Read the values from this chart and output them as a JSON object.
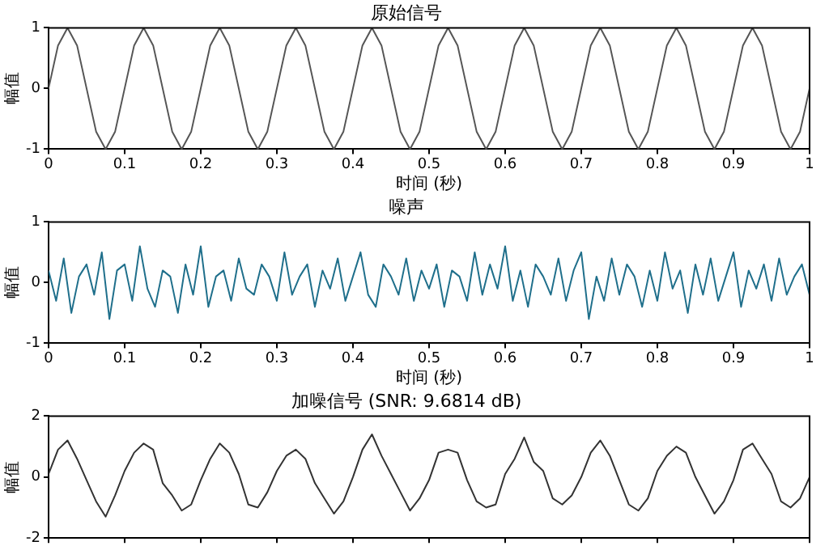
{
  "chart_data": [
    {
      "type": "line",
      "title": "原始信号",
      "xlabel": "时间 (秒)",
      "ylabel": "幅值",
      "x": [
        0,
        0.0125,
        0.025,
        0.0375,
        0.05,
        0.0625,
        0.075,
        0.0875,
        0.1,
        0.1125,
        0.125,
        0.1375,
        0.15,
        0.1625,
        0.175,
        0.1875,
        0.2,
        0.2125,
        0.225,
        0.2375,
        0.25,
        0.2625,
        0.275,
        0.2875,
        0.3,
        0.3125,
        0.325,
        0.3375,
        0.35,
        0.3625,
        0.375,
        0.3875,
        0.4,
        0.4125,
        0.425,
        0.4375,
        0.45,
        0.4625,
        0.475,
        0.4875,
        0.5,
        0.5125,
        0.525,
        0.5375,
        0.55,
        0.5625,
        0.575,
        0.5875,
        0.6,
        0.6125,
        0.625,
        0.6375,
        0.65,
        0.6625,
        0.675,
        0.6875,
        0.7,
        0.7125,
        0.725,
        0.7375,
        0.75,
        0.7625,
        0.775,
        0.7875,
        0.8,
        0.8125,
        0.825,
        0.8375,
        0.85,
        0.8625,
        0.875,
        0.8875,
        0.9,
        0.9125,
        0.925,
        0.9375,
        0.95,
        0.9625,
        0.975,
        0.9875,
        1
      ],
      "series": [
        {
          "color": "#555555",
          "values": [
            0,
            0.71,
            1,
            0.71,
            0,
            -0.71,
            -1,
            -0.71,
            0,
            0.71,
            1,
            0.71,
            0,
            -0.71,
            -1,
            -0.71,
            0,
            0.71,
            1,
            0.71,
            0,
            -0.71,
            -1,
            -0.71,
            0,
            0.71,
            1,
            0.71,
            0,
            -0.71,
            -1,
            -0.71,
            0,
            0.71,
            1,
            0.71,
            0,
            -0.71,
            -1,
            -0.71,
            0,
            0.71,
            1,
            0.71,
            0,
            -0.71,
            -1,
            -0.71,
            0,
            0.71,
            1,
            0.71,
            0,
            -0.71,
            -1,
            -0.71,
            0,
            0.71,
            1,
            0.71,
            0,
            -0.71,
            -1,
            -0.71,
            0,
            0.71,
            1,
            0.71,
            0,
            -0.71,
            -1,
            -0.71,
            0,
            0.71,
            1,
            0.71,
            0,
            -0.71,
            -1,
            -0.71,
            0
          ]
        }
      ],
      "xlim": [
        0,
        1
      ],
      "xticks": [
        0,
        0.1,
        0.2,
        0.3,
        0.4,
        0.5,
        0.6,
        0.7,
        0.8,
        0.9,
        1
      ],
      "ylim": [
        -1,
        1
      ],
      "yticks": [
        -1,
        0,
        1
      ],
      "grid": false,
      "legend": false
    },
    {
      "type": "line",
      "title": "噪声",
      "xlabel": "时间 (秒)",
      "ylabel": "幅值",
      "x": [
        0,
        0.01,
        0.02,
        0.03,
        0.04,
        0.05,
        0.06,
        0.07,
        0.08,
        0.09,
        0.1,
        0.11,
        0.12,
        0.13,
        0.14,
        0.15,
        0.16,
        0.17,
        0.18,
        0.19,
        0.2,
        0.21,
        0.22,
        0.23,
        0.24,
        0.25,
        0.26,
        0.27,
        0.28,
        0.29,
        0.3,
        0.31,
        0.32,
        0.33,
        0.34,
        0.35,
        0.36,
        0.37,
        0.38,
        0.39,
        0.4,
        0.41,
        0.42,
        0.43,
        0.44,
        0.45,
        0.46,
        0.47,
        0.48,
        0.49,
        0.5,
        0.51,
        0.52,
        0.53,
        0.54,
        0.55,
        0.56,
        0.57,
        0.58,
        0.59,
        0.6,
        0.61,
        0.62,
        0.63,
        0.64,
        0.65,
        0.66,
        0.67,
        0.68,
        0.69,
        0.7,
        0.71,
        0.72,
        0.73,
        0.74,
        0.75,
        0.76,
        0.77,
        0.78,
        0.79,
        0.8,
        0.81,
        0.82,
        0.83,
        0.84,
        0.85,
        0.86,
        0.87,
        0.88,
        0.89,
        0.9,
        0.91,
        0.92,
        0.93,
        0.94,
        0.95,
        0.96,
        0.97,
        0.98,
        0.99,
        1
      ],
      "series": [
        {
          "color": "#1f6f8b",
          "values": [
            0.2,
            -0.3,
            0.4,
            -0.5,
            0.1,
            0.3,
            -0.2,
            0.5,
            -0.6,
            0.2,
            0.3,
            -0.3,
            0.6,
            -0.1,
            -0.4,
            0.2,
            0.1,
            -0.5,
            0.3,
            -0.2,
            0.6,
            -0.4,
            0.1,
            0.2,
            -0.3,
            0.4,
            -0.1,
            -0.2,
            0.3,
            0.1,
            -0.3,
            0.5,
            -0.2,
            0.1,
            0.3,
            -0.4,
            0.2,
            -0.1,
            0.4,
            -0.3,
            0.1,
            0.5,
            -0.2,
            -0.4,
            0.3,
            0.1,
            -0.2,
            0.4,
            -0.3,
            0.2,
            -0.1,
            0.3,
            -0.4,
            0.2,
            0.1,
            -0.3,
            0.5,
            -0.2,
            0.3,
            -0.1,
            0.6,
            -0.3,
            0.2,
            -0.4,
            0.3,
            0.1,
            -0.2,
            0.4,
            -0.3,
            0.2,
            0.5,
            -0.6,
            0.1,
            -0.3,
            0.4,
            -0.2,
            0.3,
            0.1,
            -0.4,
            0.2,
            -0.3,
            0.5,
            -0.1,
            0.2,
            -0.5,
            0.3,
            -0.2,
            0.4,
            -0.3,
            0.1,
            0.5,
            -0.4,
            0.2,
            -0.1,
            0.3,
            -0.3,
            0.4,
            -0.2,
            0.1,
            0.3,
            -0.2
          ]
        }
      ],
      "xlim": [
        0,
        1
      ],
      "xticks": [
        0,
        0.1,
        0.2,
        0.3,
        0.4,
        0.5,
        0.6,
        0.7,
        0.8,
        0.9,
        1
      ],
      "ylim": [
        -1,
        1
      ],
      "yticks": [
        -1,
        0,
        1
      ],
      "grid": false,
      "legend": false
    },
    {
      "type": "line",
      "title": "加噪信号 (SNR: 9.6814 dB)",
      "ylabel": "幅值",
      "x": [
        0,
        0.0125,
        0.025,
        0.0375,
        0.05,
        0.0625,
        0.075,
        0.0875,
        0.1,
        0.1125,
        0.125,
        0.1375,
        0.15,
        0.1625,
        0.175,
        0.1875,
        0.2,
        0.2125,
        0.225,
        0.2375,
        0.25,
        0.2625,
        0.275,
        0.2875,
        0.3,
        0.3125,
        0.325,
        0.3375,
        0.35,
        0.3625,
        0.375,
        0.3875,
        0.4,
        0.4125,
        0.425,
        0.4375,
        0.45,
        0.4625,
        0.475,
        0.4875,
        0.5,
        0.5125,
        0.525,
        0.5375,
        0.55,
        0.5625,
        0.575,
        0.5875,
        0.6,
        0.6125,
        0.625,
        0.6375,
        0.65,
        0.6625,
        0.675,
        0.6875,
        0.7,
        0.7125,
        0.725,
        0.7375,
        0.75,
        0.7625,
        0.775,
        0.7875,
        0.8,
        0.8125,
        0.825,
        0.8375,
        0.85,
        0.8625,
        0.875,
        0.8875,
        0.9,
        0.9125,
        0.925,
        0.9375,
        0.95,
        0.9625,
        0.975,
        0.9875,
        1
      ],
      "series": [
        {
          "color": "#333333",
          "values": [
            0.1,
            0.9,
            1.2,
            0.6,
            -0.1,
            -0.8,
            -1.3,
            -0.6,
            0.2,
            0.8,
            1.1,
            0.9,
            -0.2,
            -0.6,
            -1.1,
            -0.9,
            -0.1,
            0.6,
            1.1,
            0.8,
            0.1,
            -0.9,
            -1.0,
            -0.5,
            0.2,
            0.7,
            0.9,
            0.6,
            -0.2,
            -0.7,
            -1.2,
            -0.8,
            0,
            0.9,
            1.4,
            0.7,
            0.1,
            -0.5,
            -1.1,
            -0.7,
            -0.1,
            0.8,
            0.9,
            0.8,
            -0.1,
            -0.8,
            -1.0,
            -0.9,
            0.1,
            0.6,
            1.3,
            0.5,
            0.2,
            -0.7,
            -0.9,
            -0.6,
            0,
            0.8,
            1.2,
            0.7,
            -0.1,
            -0.9,
            -1.1,
            -0.7,
            0.2,
            0.7,
            1.0,
            0.8,
            0,
            -0.6,
            -1.2,
            -0.8,
            -0.1,
            0.9,
            1.1,
            0.6,
            0.1,
            -0.8,
            -1.0,
            -0.7,
            0
          ]
        }
      ],
      "xlim": [
        0,
        1
      ],
      "xticks": [
        0,
        0.1,
        0.2,
        0.3,
        0.4,
        0.5,
        0.6,
        0.7,
        0.8,
        0.9,
        1
      ],
      "ylim": [
        -2,
        2
      ],
      "yticks": [
        -2,
        0,
        2
      ],
      "grid": false,
      "legend": false,
      "tick_labels": "y"
    }
  ]
}
